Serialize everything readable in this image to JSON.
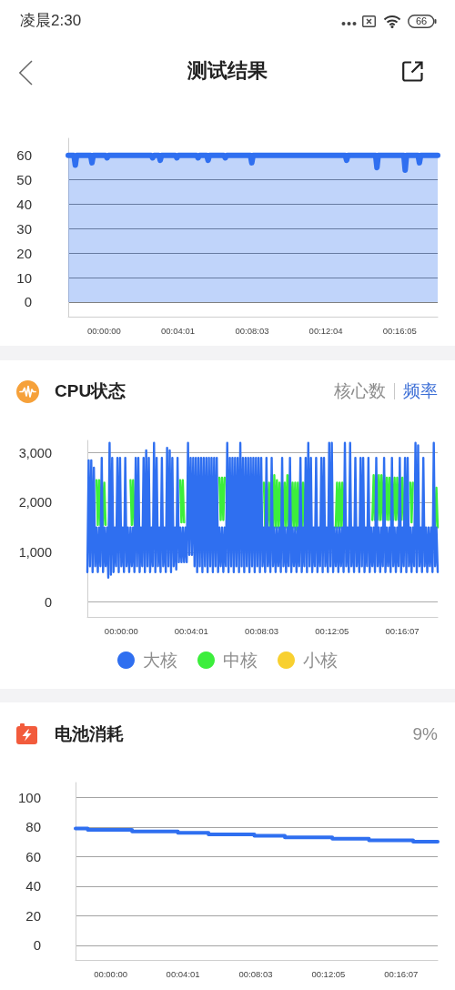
{
  "chart_data": [
    {
      "type": "area",
      "title": "测试结果",
      "annotations": [
        "凌晨2:30",
        "66"
      ],
      "color": "#2f6ff0",
      "x": [
        -0.0325,
        -0.0273,
        -0.0261,
        -0.0249,
        -0.0122,
        -0.011,
        -0.0098,
        0.0015,
        0.0027,
        0.0039,
        0.0428,
        0.044,
        0.0452,
        0.0497,
        0.0509,
        0.0521,
        0.0648,
        0.066,
        0.0672,
        0.084,
        0.0852,
        0.0864,
        0.0931,
        0.0943,
        0.0955,
        0.1087,
        0.1099,
        0.1111,
        0.1327,
        0.1339,
        0.1351,
        0.2187,
        0.2199,
        0.2211,
        0.2462,
        0.2474,
        0.2486,
        0.2718,
        0.273,
        0.2742,
        0.2847,
        0.2859,
        0.2871,
        0.3025
      ],
      "values": [
        60,
        60,
        56,
        60,
        60,
        57,
        60,
        60,
        59,
        60,
        60,
        59,
        60,
        60,
        58,
        60,
        60,
        59,
        60,
        60,
        59,
        60,
        60,
        58,
        60,
        60,
        59,
        60,
        60,
        57,
        60,
        60,
        58,
        60,
        60,
        55,
        60,
        60,
        54,
        60,
        60,
        57,
        60,
        60
      ],
      "xlim": [
        -0.0325,
        0.3025
      ],
      "xticks": [
        {
          "value": 0,
          "label": "00:00:00"
        },
        {
          "value": 0.0669,
          "label": "00:04:01"
        },
        {
          "value": 0.1342,
          "label": "00:08:03"
        },
        {
          "value": 0.2011,
          "label": "00:12:04"
        },
        {
          "value": 0.2681,
          "label": "00:16:05"
        }
      ],
      "ylim": [
        -6,
        67
      ],
      "yticks": [
        0,
        10,
        20,
        30,
        40,
        50,
        60
      ],
      "grid": "y"
    },
    {
      "type": "line",
      "title": "CPU状态",
      "annotations": [
        "核心数",
        "频率"
      ],
      "x": [
        -0.0325,
        -0.03125,
        -0.03,
        -0.02875,
        -0.0275,
        -0.02625,
        -0.025,
        -0.02375,
        -0.0225,
        -0.02125,
        -0.02,
        -0.01875,
        -0.0175,
        -0.01625,
        -0.015,
        -0.01375,
        -0.0125,
        -0.01125,
        -0.01,
        -0.00875,
        -0.0075,
        -0.00625,
        -0.005,
        -0.00375,
        -0.0025,
        -0.00125,
        0,
        0.00125,
        0.0025,
        0.00375,
        0.005,
        0.00625,
        0.0075,
        0.00875,
        0.01,
        0.01125,
        0.0125,
        0.01375,
        0.015,
        0.01625,
        0.0175,
        0.01875,
        0.02,
        0.02125,
        0.0225,
        0.02375,
        0.025,
        0.02625,
        0.0275,
        0.02875,
        0.03,
        0.03125,
        0.0325,
        0.03375,
        0.035,
        0.03625,
        0.0375,
        0.03875,
        0.04,
        0.04125,
        0.0425,
        0.04375,
        0.045,
        0.04625,
        0.0475,
        0.04875,
        0.05,
        0.05125,
        0.0525,
        0.05375,
        0.055,
        0.05625,
        0.0575,
        0.05875,
        0.06,
        0.06125,
        0.0625,
        0.06375,
        0.065,
        0.06625,
        0.0675,
        0.06875,
        0.07,
        0.07125,
        0.0725,
        0.07375,
        0.075,
        0.07625,
        0.0775,
        0.07875,
        0.08,
        0.08125,
        0.0825,
        0.08375,
        0.085,
        0.08625,
        0.0875,
        0.08875,
        0.09,
        0.09125,
        0.0925,
        0.09375,
        0.095,
        0.09625,
        0.0975,
        0.09875,
        0.1,
        0.10125,
        0.1025,
        0.10375,
        0.105,
        0.10625,
        0.1075,
        0.10875,
        0.11,
        0.11125,
        0.1125,
        0.11375,
        0.115,
        0.11625,
        0.1175,
        0.11875,
        0.12,
        0.12125,
        0.1225,
        0.12375,
        0.125,
        0.12625,
        0.1275,
        0.12875,
        0.13,
        0.13125,
        0.1325,
        0.13375,
        0.135,
        0.13625,
        0.1375,
        0.13875,
        0.14,
        0.14125,
        0.1425,
        0.14375,
        0.145,
        0.14625,
        0.1475,
        0.14875,
        0.15,
        0.15125,
        0.1525,
        0.15375,
        0.155,
        0.15625,
        0.1575,
        0.15875,
        0.16,
        0.16125,
        0.1625,
        0.16375,
        0.165,
        0.16625,
        0.1675,
        0.16875,
        0.17,
        0.17125,
        0.1725,
        0.17375,
        0.175,
        0.17625,
        0.1775,
        0.17875,
        0.18,
        0.18125,
        0.1825,
        0.18375,
        0.185,
        0.18625,
        0.1875,
        0.18875,
        0.19,
        0.19125,
        0.1925,
        0.19375,
        0.195,
        0.19625,
        0.1975,
        0.19875,
        0.2,
        0.20125,
        0.2025,
        0.20375,
        0.205,
        0.20625,
        0.2075,
        0.20875,
        0.21,
        0.21125,
        0.2125,
        0.21375,
        0.215,
        0.21625,
        0.2175,
        0.21875,
        0.22,
        0.22125,
        0.2225,
        0.22375,
        0.225,
        0.22625,
        0.2275,
        0.22875,
        0.23,
        0.23125,
        0.2325,
        0.23375,
        0.235,
        0.23625,
        0.2375,
        0.23875,
        0.24,
        0.24125,
        0.2425,
        0.24375,
        0.245,
        0.24625,
        0.2475,
        0.24875,
        0.25,
        0.25125,
        0.2525,
        0.25375,
        0.255,
        0.25625,
        0.2575,
        0.25875,
        0.26,
        0.26125,
        0.2625,
        0.26375,
        0.265,
        0.26625,
        0.2675,
        0.26875,
        0.27,
        0.27125,
        0.2725,
        0.27375,
        0.275,
        0.27625,
        0.2775,
        0.27875,
        0.28,
        0.28125,
        0.2825,
        0.28375,
        0.285,
        0.28625,
        0.2875,
        0.28875,
        0.29,
        0.29125,
        0.2925,
        0.29375,
        0.295,
        0.29625,
        0.2975,
        0.29875,
        0.3,
        0.30125,
        0.3025
      ],
      "series": [
        {
          "name": "大核",
          "color": "#2f6ff0",
          "values": [
            600,
            2850,
            720,
            2850,
            600,
            2700,
            720,
            1500,
            600,
            1500,
            720,
            2900,
            600,
            1500,
            720,
            1500,
            490,
            3200,
            550,
            2900,
            600,
            1500,
            720,
            2900,
            600,
            2900,
            720,
            1500,
            600,
            2900,
            720,
            1500,
            600,
            1500,
            720,
            1500,
            600,
            2900,
            720,
            2900,
            600,
            1500,
            720,
            2900,
            600,
            3050,
            720,
            2900,
            600,
            1500,
            720,
            3200,
            600,
            2900,
            720,
            1500,
            600,
            2900,
            720,
            1500,
            600,
            3100,
            720,
            3050,
            600,
            2900,
            720,
            1500,
            650,
            2900,
            800,
            1500,
            800,
            1500,
            800,
            1500,
            800,
            3200,
            950,
            2900,
            950,
            2900,
            720,
            2900,
            600,
            2900,
            720,
            2900,
            600,
            2900,
            720,
            2900,
            600,
            2900,
            720,
            2900,
            600,
            2900,
            720,
            2900,
            600,
            1500,
            720,
            1500,
            600,
            1500,
            720,
            3200,
            600,
            2900,
            720,
            2900,
            600,
            2900,
            720,
            2900,
            600,
            3200,
            720,
            2900,
            600,
            2900,
            720,
            2900,
            600,
            2900,
            720,
            2900,
            600,
            2900,
            720,
            2900,
            600,
            2900,
            720,
            1500,
            600,
            2900,
            720,
            1500,
            600,
            2900,
            720,
            1500,
            600,
            1500,
            720,
            1500,
            600,
            2900,
            720,
            1500,
            600,
            1500,
            720,
            2900,
            600,
            1500,
            720,
            1500,
            600,
            1500,
            720,
            2900,
            600,
            1500,
            720,
            2900,
            600,
            3200,
            720,
            2900,
            600,
            1500,
            720,
            2900,
            600,
            1500,
            720,
            2900,
            600,
            2900,
            720,
            1500,
            600,
            3200,
            720,
            3200,
            600,
            1500,
            720,
            1500,
            600,
            1500,
            720,
            1500,
            600,
            3200,
            720,
            1500,
            600,
            3200,
            720,
            1500,
            600,
            2900,
            720,
            1500,
            600,
            2900,
            720,
            2900,
            600,
            1500,
            720,
            2900,
            600,
            1500,
            720,
            1500,
            600,
            2900,
            720,
            1500,
            600,
            1500,
            720,
            2900,
            600,
            1500,
            720,
            1500,
            600,
            2900,
            720,
            1500,
            600,
            1500,
            720,
            2900,
            600,
            1500,
            720,
            2900,
            600,
            2900,
            720,
            1500,
            600,
            1500,
            720,
            3200,
            600,
            3150,
            720,
            1500,
            600,
            2900,
            720,
            1500,
            600,
            1500,
            720,
            1500,
            600,
            3200,
            720,
            1500,
            600
          ]
        },
        {
          "name": "中核",
          "color": "#3cee3c",
          "values": [
            null,
            null,
            null,
            null,
            null,
            null,
            null,
            2450,
            1550,
            2450,
            1550,
            2450,
            1550,
            2400,
            1550,
            null,
            null,
            null,
            null,
            null,
            null,
            null,
            null,
            null,
            null,
            null,
            null,
            null,
            null,
            null,
            null,
            null,
            null,
            2450,
            1550,
            2450,
            1550,
            null,
            null,
            null,
            null,
            null,
            null,
            null,
            null,
            null,
            null,
            null,
            null,
            null,
            null,
            null,
            null,
            null,
            null,
            null,
            null,
            null,
            null,
            null,
            null,
            null,
            null,
            null,
            null,
            null,
            null,
            null,
            null,
            null,
            null,
            2450,
            1600,
            2450,
            1600,
            null,
            null,
            null,
            null,
            null,
            null,
            null,
            null,
            null,
            null,
            null,
            null,
            null,
            null,
            null,
            null,
            null,
            null,
            null,
            null,
            null,
            null,
            null,
            null,
            null,
            null,
            2500,
            1650,
            2500,
            1650,
            2500,
            null,
            null,
            null,
            null,
            null,
            null,
            null,
            null,
            null,
            null,
            null,
            null,
            null,
            null,
            null,
            null,
            null,
            null,
            null,
            null,
            null,
            null,
            null,
            null,
            null,
            null,
            null,
            null,
            null,
            2400,
            1500,
            2400,
            1500,
            2400,
            1500,
            2550,
            1500,
            2550,
            1500,
            2450,
            1500,
            2400,
            1500,
            2400,
            1500,
            2400,
            1500,
            2550,
            1500,
            2550,
            1500,
            2400,
            1500,
            2400,
            1450,
            2400,
            1450,
            2400,
            1450,
            2400,
            1500,
            2400,
            1500,
            null,
            null,
            null,
            null,
            null,
            null,
            null,
            null,
            null,
            null,
            null,
            null,
            null,
            null,
            null,
            null,
            null,
            null,
            null,
            null,
            null,
            1500,
            2400,
            1500,
            2400,
            1500,
            2400,
            1500,
            2400,
            null,
            null,
            null,
            null,
            null,
            null,
            null,
            null,
            null,
            null,
            null,
            null,
            null,
            null,
            null,
            null,
            null,
            null,
            null,
            null,
            1650,
            2550,
            1650,
            2550,
            1650,
            2550,
            1650,
            2550,
            1650,
            2550,
            1650,
            2500,
            1650,
            2500,
            1650,
            2500,
            1650,
            2500,
            1650,
            2500,
            1650,
            2500,
            1650,
            2500,
            1650,
            null,
            null,
            null,
            null,
            2400,
            1600,
            2400,
            null,
            null,
            null,
            null,
            null,
            null,
            null,
            null,
            null,
            null,
            null,
            null,
            null,
            null,
            null,
            null,
            1500,
            2300,
            1500
          ]
        },
        {
          "name": "小核",
          "color": "#f8d030",
          "values": [
            null,
            null,
            null,
            null,
            null,
            null,
            null,
            null,
            null,
            null,
            null,
            null,
            null,
            null,
            null,
            null,
            null,
            null,
            null,
            null,
            null,
            null,
            null,
            null,
            null,
            null,
            null,
            null,
            null,
            null,
            null,
            null,
            null,
            null,
            null,
            null,
            null,
            null,
            null,
            null,
            null,
            null,
            null,
            null,
            null,
            null,
            null,
            null,
            null,
            null,
            null,
            null,
            null,
            null,
            null,
            null,
            null,
            null,
            null,
            null,
            null,
            null,
            null,
            null,
            null,
            null,
            null,
            null,
            null,
            null,
            null,
            null,
            null,
            null,
            null,
            null,
            null,
            null,
            null,
            null,
            null,
            null,
            null,
            null,
            null,
            null,
            null,
            null,
            null,
            null,
            null,
            null,
            null,
            null,
            null,
            null,
            null,
            null,
            null,
            null,
            null,
            null,
            null,
            null,
            null,
            null,
            null,
            null,
            null,
            null,
            null,
            null,
            null,
            null,
            null,
            null,
            null,
            null,
            null,
            null,
            null,
            null,
            null,
            null,
            null,
            null,
            null,
            null,
            null,
            null,
            null,
            null,
            null,
            null,
            null,
            null,
            null,
            null,
            null,
            null,
            null,
            null,
            null,
            null,
            null,
            null,
            null,
            null,
            null,
            null,
            null,
            null,
            null,
            null,
            null,
            null,
            null,
            null,
            null,
            null,
            null,
            null,
            null,
            null,
            null,
            null,
            null,
            null,
            null,
            null,
            null,
            null,
            null,
            null,
            null,
            null,
            null,
            null,
            null,
            null,
            null,
            null,
            null,
            null,
            null,
            null,
            null,
            null,
            null,
            null,
            null,
            null,
            null,
            null,
            null,
            null,
            null,
            null,
            null,
            null,
            null,
            null,
            null,
            null,
            null,
            null,
            null,
            null,
            null,
            null,
            null,
            null,
            null,
            null,
            null,
            null,
            null,
            null,
            null,
            null,
            null,
            null,
            null,
            null,
            null,
            null,
            null,
            null,
            null,
            null,
            null,
            null,
            null,
            null,
            null,
            null,
            null,
            null,
            null,
            null,
            null,
            null,
            null,
            null,
            null,
            null,
            null,
            null,
            null,
            null,
            null,
            null,
            null,
            null,
            null,
            null,
            null,
            null,
            null,
            null,
            null,
            null,
            null,
            null,
            null,
            null,
            null,
            null,
            null
          ]
        }
      ],
      "xlim": [
        -0.0325,
        0.3025
      ],
      "xticks": [
        {
          "value": 0,
          "label": "00:00:00"
        },
        {
          "value": 0.0669,
          "label": "00:04:01"
        },
        {
          "value": 0.1342,
          "label": "00:08:03"
        },
        {
          "value": 0.2014,
          "label": "00:12:05"
        },
        {
          "value": 0.2686,
          "label": "00:16:07"
        }
      ],
      "ylim": [
        -300,
        3250
      ],
      "yticks": [
        0,
        {
          "value": 1000,
          "label": "1,000"
        },
        {
          "value": 2000,
          "label": "2,000"
        },
        {
          "value": 3000,
          "label": "3,000"
        }
      ],
      "grid": "y",
      "legend": "bottom"
    },
    {
      "type": "step",
      "title": "电池消耗",
      "annotations": [
        "9%"
      ],
      "color": "#2f6ff0",
      "x": [
        -0.0325,
        -0.0212,
        0.0198,
        0.0622,
        0.0905,
        0.1329,
        0.1611,
        0.205,
        0.2389,
        0.2798,
        0.3025
      ],
      "values": [
        79,
        78,
        77,
        76,
        75,
        74,
        73,
        72,
        71,
        70,
        70
      ],
      "xlim": [
        -0.0325,
        0.3025
      ],
      "xticks": [
        {
          "value": 0,
          "label": "00:00:00"
        },
        {
          "value": 0.0669,
          "label": "00:04:01"
        },
        {
          "value": 0.1342,
          "label": "00:08:03"
        },
        {
          "value": 0.2014,
          "label": "00:12:05"
        },
        {
          "value": 0.2686,
          "label": "00:16:07"
        }
      ],
      "ylim": [
        -10,
        110
      ],
      "yticks": [
        0,
        20,
        40,
        60,
        80,
        100
      ],
      "grid": "y"
    }
  ]
}
